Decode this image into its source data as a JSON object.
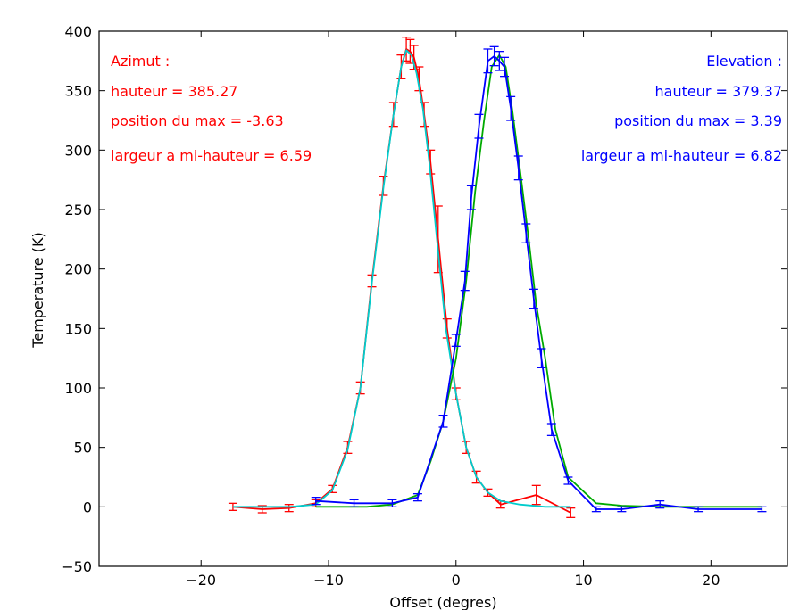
{
  "chart_data": {
    "type": "line",
    "title": "",
    "xlabel": "Offset (degres)",
    "ylabel": "Temperature (K)",
    "xlim": [
      -28,
      26
    ],
    "ylim": [
      -50,
      400
    ],
    "xticks": [
      -20,
      -10,
      0,
      10,
      20
    ],
    "xtick_labels": [
      "−20",
      "−10",
      "0",
      "10",
      "20"
    ],
    "yticks": [
      -50,
      0,
      50,
      100,
      150,
      200,
      250,
      300,
      350,
      400
    ],
    "ytick_labels": [
      "−50",
      "0",
      "50",
      "100",
      "150",
      "200",
      "250",
      "300",
      "350",
      "400"
    ],
    "grid": false,
    "legend": "none",
    "series": [
      {
        "color": "#ff0000",
        "style": "line-errorbars",
        "x": [
          -17.5,
          -15.2,
          -13.1,
          -11.0,
          -9.7,
          -8.5,
          -7.5,
          -6.6,
          -5.7,
          -4.9,
          -4.3,
          -3.9,
          -3.6,
          -3.3,
          -2.9,
          -2.5,
          -2.0,
          -1.4,
          -0.7,
          0.0,
          0.8,
          1.6,
          2.5,
          3.5,
          6.3,
          9.0
        ],
        "y": [
          0,
          -2,
          -1,
          3,
          15,
          50,
          100,
          190,
          270,
          330,
          370,
          385,
          383,
          378,
          360,
          330,
          290,
          225,
          150,
          95,
          50,
          25,
          12,
          2,
          10,
          -5
        ],
        "err": [
          3,
          3,
          3,
          3,
          3,
          5,
          5,
          5,
          8,
          10,
          10,
          10,
          10,
          10,
          10,
          10,
          10,
          28,
          8,
          5,
          5,
          5,
          3,
          3,
          8,
          4
        ]
      },
      {
        "color": "#00cccc",
        "style": "line",
        "x": [
          -17.5,
          -15,
          -13,
          -11,
          -9.7,
          -8.5,
          -7.5,
          -6.6,
          -5.7,
          -4.9,
          -4.3,
          -3.9,
          -3.5,
          -3.1,
          -2.6,
          -2.1,
          -1.5,
          -0.8,
          0.0,
          0.8,
          1.6,
          2.5,
          3.5,
          5.0,
          7.0,
          9.0
        ],
        "y": [
          0,
          0,
          0,
          2,
          14,
          48,
          100,
          188,
          268,
          330,
          370,
          384,
          380,
          365,
          335,
          290,
          225,
          150,
          95,
          50,
          25,
          12,
          5,
          2,
          0,
          0
        ]
      },
      {
        "color": "#00aa00",
        "style": "line",
        "x": [
          -11,
          -9,
          -7,
          -5,
          -3,
          -2,
          -1,
          0,
          0.8,
          1.5,
          2.2,
          2.8,
          3.4,
          3.9,
          4.4,
          5,
          5.7,
          6.3,
          7,
          7.8,
          8.8,
          11,
          13,
          16,
          19,
          24
        ],
        "y": [
          0,
          0,
          0,
          2,
          10,
          38,
          72,
          125,
          190,
          265,
          325,
          370,
          380,
          370,
          335,
          285,
          225,
          170,
          125,
          65,
          25,
          3,
          1,
          0,
          0,
          0
        ]
      },
      {
        "color": "#0000ff",
        "style": "line-errorbars",
        "x": [
          -11.0,
          -8.0,
          -5.0,
          -3.0,
          -1.0,
          0.0,
          0.7,
          1.2,
          1.8,
          2.5,
          3.0,
          3.4,
          3.8,
          4.3,
          4.9,
          5.5,
          6.1,
          6.7,
          7.5,
          8.8,
          11.0,
          13.0,
          16.0,
          19.0,
          24.0
        ],
        "y": [
          5,
          3,
          3,
          8,
          72,
          140,
          190,
          260,
          320,
          375,
          379,
          375,
          370,
          335,
          285,
          230,
          175,
          125,
          65,
          22,
          -2,
          -2,
          2,
          -2,
          -2
        ],
        "err": [
          3,
          3,
          3,
          3,
          5,
          5,
          8,
          10,
          10,
          10,
          8,
          8,
          8,
          10,
          10,
          8,
          8,
          8,
          5,
          3,
          2,
          2,
          3,
          2,
          2
        ]
      }
    ],
    "annotations": {
      "left_color": "#ff0000",
      "right_color": "#0000ff",
      "left": [
        "Azimut :",
        "hauteur = 385.27",
        "position du max = -3.63",
        "largeur a mi-hauteur = 6.59"
      ],
      "right": [
        "Elevation :",
        "hauteur = 379.37",
        "position du max = 3.39",
        "largeur a mi-hauteur = 6.82"
      ]
    }
  }
}
